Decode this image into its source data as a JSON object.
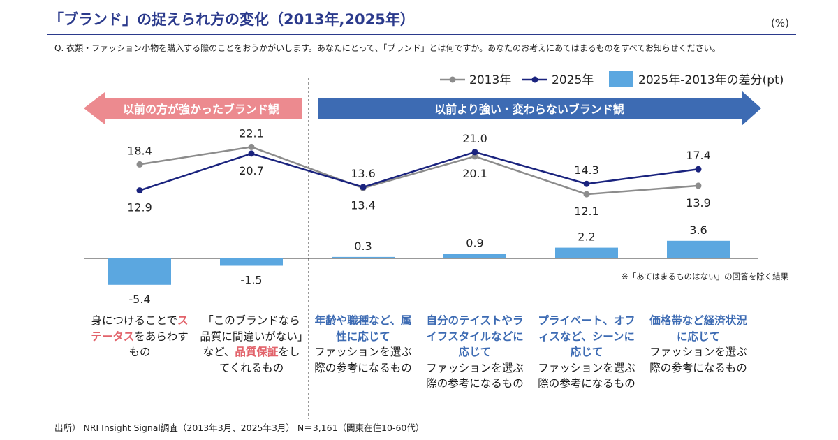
{
  "title": "「ブランド」の捉えられ方の変化（2013年,2025年）",
  "unit": "(%)",
  "question": "Q. 衣類・ファッション小物を購入する際のことをおうかがいします。あなたにとって、「ブランド」とは何ですか。あなたのお考えにあてはまるものをすべてお知らせください。",
  "arrows": {
    "left": "以前の方が強かったブランド観",
    "right": "以前より強い・変わらないブランド観"
  },
  "note": "※「あてはまるものはない」の回答を除く結果",
  "source": "出所） NRI Insight Signal調査（2013年3月、2025年3月） N＝3,161（関東在住10-60代）",
  "colors": {
    "title": "#2b3a8c",
    "series2013": "#8c8c8c",
    "series2025": "#1a237e",
    "diff_bar": "#5ba7e0",
    "left_arrow": "#ec8a8f",
    "right_arrow": "#3d6bb3"
  },
  "categories": [
    {
      "pre": "身につけることで",
      "highlight": "ステータス",
      "post": "をあらわすもの",
      "hl_color": "red"
    },
    {
      "pre": "「このブランドなら品質に間違いがない」など、",
      "highlight": "品質保証",
      "post": "をしてくれるもの",
      "hl_color": "red"
    },
    {
      "pre": "",
      "highlight": "年齢や職種など、属性に応じて",
      "post": "ファッションを選ぶ際の参考になるもの",
      "hl_color": "blue"
    },
    {
      "pre": "",
      "highlight": "自分のテイストやライフスタイルなどに応じて",
      "post": "ファッションを選ぶ際の参考になるもの",
      "hl_color": "blue"
    },
    {
      "pre": "",
      "highlight": "プライベート、オフィスなど、シーンに応じて",
      "post": "ファッションを選ぶ際の参考になるもの",
      "hl_color": "blue"
    },
    {
      "pre": "",
      "highlight": "価格帯など経済状況に応じて",
      "post": "ファッションを選ぶ際の参考になるもの",
      "hl_color": "blue"
    }
  ],
  "chart_data": {
    "type": "line",
    "title": "「ブランド」の捉えられ方の変化（2013年,2025年）",
    "ylabel": "(%)",
    "legend": [
      "2013年",
      "2025年",
      "2025年-2013年の差分(pt)"
    ],
    "legend_position": "top-right",
    "series": [
      {
        "name": "2013年",
        "values": [
          18.4,
          22.1,
          13.4,
          20.1,
          12.1,
          13.9
        ],
        "labels": [
          "18.4",
          "22.1",
          "13.4",
          "20.1",
          "12.1",
          "13.9"
        ]
      },
      {
        "name": "2025年",
        "values": [
          12.9,
          20.7,
          13.6,
          21.0,
          14.3,
          17.4
        ],
        "labels": [
          "12.9",
          "20.7",
          "13.6",
          "21.0",
          "14.3",
          "17.4"
        ]
      },
      {
        "name": "2025年-2013年の差分(pt)",
        "type": "bar",
        "values": [
          -5.4,
          -1.5,
          0.3,
          0.9,
          2.2,
          3.6
        ],
        "labels": [
          "-5.4",
          "-1.5",
          "0.3",
          "0.9",
          "2.2",
          "3.6"
        ]
      }
    ]
  }
}
